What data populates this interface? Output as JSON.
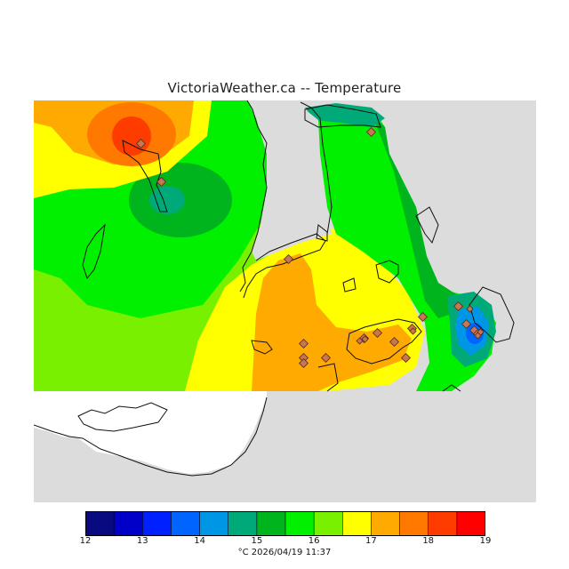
{
  "title": "VictoriaWeather.ca  --  Temperature",
  "legend": {
    "colors": [
      "#0a0a80",
      "#0000c8",
      "#0020ff",
      "#0064ff",
      "#0096e6",
      "#00aa78",
      "#00b41e",
      "#00f000",
      "#78f000",
      "#ffff00",
      "#ffaa00",
      "#ff7800",
      "#ff3c00",
      "#ff0000"
    ],
    "ticks": [
      "12",
      "13",
      "14",
      "15",
      "16",
      "17",
      "18",
      "19"
    ]
  },
  "footer": "°C  2026/04/19 11:37",
  "map": {
    "land_color": "#dcdcdc",
    "no_data_color": "#ffffff",
    "station_marker_color": "#c87850",
    "stations": 24
  }
}
